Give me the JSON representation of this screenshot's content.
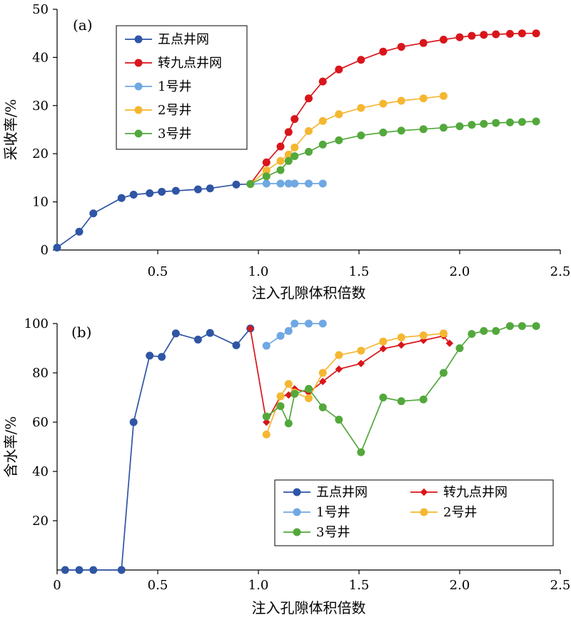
{
  "chart_data": [
    {
      "type": "line",
      "panel_label": "(a)",
      "xlabel": "注入孔隙体积倍数",
      "ylabel": "采收率/%",
      "xlim": [
        0,
        2.5
      ],
      "ylim": [
        0,
        50
      ],
      "xticks": [
        "0.5",
        "1.0",
        "1.5",
        "2.0",
        "2.5"
      ],
      "yticks": [
        "0",
        "10",
        "20",
        "30",
        "40",
        "50"
      ],
      "xtick_values": [
        0.5,
        1.0,
        1.5,
        2.0,
        2.5
      ],
      "ytick_values": [
        0,
        10,
        20,
        30,
        40,
        50
      ],
      "legend_position": "top-left",
      "series": [
        {
          "name": "五点井网",
          "color": "#2f55a4",
          "marker": "circle",
          "x": [
            0.0,
            0.11,
            0.18,
            0.32,
            0.38,
            0.46,
            0.52,
            0.59,
            0.7,
            0.76,
            0.89,
            0.96
          ],
          "y": [
            0.5,
            3.8,
            7.6,
            10.8,
            11.5,
            11.8,
            12.1,
            12.3,
            12.6,
            12.8,
            13.6,
            13.7
          ]
        },
        {
          "name": "转九点井网",
          "color": "#d9151b",
          "marker": "circle",
          "x": [
            0.96,
            1.04,
            1.11,
            1.15,
            1.18,
            1.25,
            1.32,
            1.4,
            1.51,
            1.62,
            1.71,
            1.82,
            1.92,
            2.0,
            2.06,
            2.12,
            2.18,
            2.25,
            2.31,
            2.38
          ],
          "y": [
            13.7,
            18.2,
            21.5,
            24.5,
            27.2,
            31.5,
            35.0,
            37.5,
            39.5,
            41.2,
            42.2,
            43.0,
            43.7,
            44.2,
            44.5,
            44.7,
            44.8,
            44.9,
            45.0,
            45.0
          ]
        },
        {
          "name": "1号井",
          "color": "#6fa8e2",
          "marker": "circle",
          "x": [
            0.96,
            1.04,
            1.11,
            1.15,
            1.18,
            1.25,
            1.32
          ],
          "y": [
            13.7,
            13.8,
            13.8,
            13.8,
            13.8,
            13.8,
            13.8
          ]
        },
        {
          "name": "2号井",
          "color": "#f5b731",
          "marker": "circle",
          "x": [
            0.96,
            1.04,
            1.11,
            1.15,
            1.18,
            1.25,
            1.32,
            1.4,
            1.51,
            1.62,
            1.71,
            1.82,
            1.92
          ],
          "y": [
            13.7,
            16.5,
            18.5,
            19.8,
            21.3,
            24.7,
            26.8,
            28.2,
            29.5,
            30.4,
            31.0,
            31.5,
            32.0
          ]
        },
        {
          "name": "3号井",
          "color": "#53a83c",
          "marker": "circle",
          "x": [
            0.96,
            1.04,
            1.11,
            1.15,
            1.18,
            1.25,
            1.32,
            1.4,
            1.51,
            1.62,
            1.71,
            1.82,
            1.92,
            2.0,
            2.06,
            2.12,
            2.18,
            2.25,
            2.31,
            2.38
          ],
          "y": [
            13.7,
            15.3,
            16.6,
            18.5,
            19.5,
            20.4,
            21.9,
            22.8,
            23.8,
            24.4,
            24.8,
            25.1,
            25.4,
            25.7,
            26.0,
            26.2,
            26.4,
            26.5,
            26.6,
            26.7
          ]
        }
      ]
    },
    {
      "type": "line",
      "panel_label": "(b)",
      "xlabel": "注入孔隙体积倍数",
      "ylabel": "含水率/%",
      "xlim": [
        0,
        2.5
      ],
      "ylim": [
        0,
        100
      ],
      "xticks": [
        "0",
        "0.5",
        "1.0",
        "1.5",
        "2.0",
        "2.5"
      ],
      "yticks": [
        "20",
        "40",
        "60",
        "80",
        "100"
      ],
      "xtick_values": [
        0,
        0.5,
        1.0,
        1.5,
        2.0,
        2.5
      ],
      "ytick_values": [
        20,
        40,
        60,
        80,
        100
      ],
      "legend_position": "bottom-right",
      "series": [
        {
          "name": "五点井网",
          "color": "#2f55a4",
          "marker": "circle",
          "x": [
            0.04,
            0.11,
            0.18,
            0.32,
            0.38,
            0.46,
            0.52,
            0.59,
            0.7,
            0.76,
            0.89,
            0.96
          ],
          "y": [
            0,
            0,
            0,
            0,
            60,
            87,
            86.5,
            96,
            93.5,
            96.2,
            91.2,
            98
          ]
        },
        {
          "name": "转九点井网",
          "color": "#d9151b",
          "marker": "diamond",
          "x": [
            0.96,
            1.04,
            1.11,
            1.15,
            1.18,
            1.25,
            1.32,
            1.4,
            1.51,
            1.62,
            1.71,
            1.82,
            1.92,
            1.95
          ],
          "y": [
            98,
            60,
            70.5,
            71,
            73.5,
            72,
            76.5,
            81.5,
            83.8,
            89.8,
            91.3,
            93.2,
            95,
            92
          ]
        },
        {
          "name": "1号井",
          "color": "#6fa8e2",
          "marker": "circle",
          "x": [
            1.04,
            1.11,
            1.15,
            1.18,
            1.25,
            1.32
          ],
          "y": [
            91,
            95,
            97,
            100,
            100,
            100
          ]
        },
        {
          "name": "2号井",
          "color": "#f5b731",
          "marker": "circle",
          "x": [
            1.04,
            1.11,
            1.15,
            1.18,
            1.25,
            1.32,
            1.4,
            1.51,
            1.62,
            1.71,
            1.82,
            1.92
          ],
          "y": [
            55,
            70.5,
            75.5,
            72,
            69.7,
            80,
            87.2,
            89,
            92.7,
            94.4,
            95.2,
            96
          ]
        },
        {
          "name": "3号井",
          "color": "#53a83c",
          "marker": "circle",
          "x": [
            1.04,
            1.11,
            1.15,
            1.18,
            1.25,
            1.32,
            1.4,
            1.51,
            1.62,
            1.71,
            1.82,
            1.92,
            2.0,
            2.06,
            2.12,
            2.18,
            2.25,
            2.31,
            2.38
          ],
          "y": [
            62.3,
            66.5,
            59.5,
            71.5,
            73.5,
            66,
            61,
            47.8,
            70,
            68.5,
            69.2,
            80,
            90,
            95.8,
            97,
            97,
            99,
            99,
            99
          ]
        }
      ]
    }
  ]
}
